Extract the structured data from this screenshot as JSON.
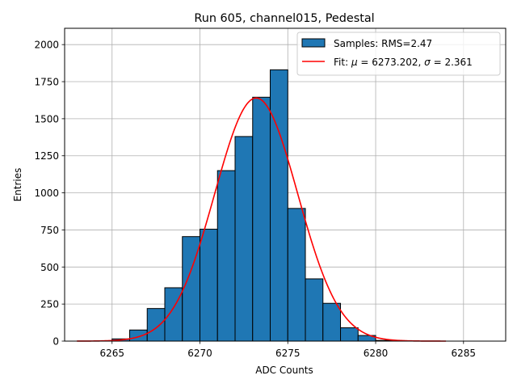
{
  "chart_data": {
    "type": "bar",
    "title": "Run 605, channel015, Pedestal",
    "xlabel": "ADC Counts",
    "ylabel": "Entries",
    "xlim": [
      6262.3,
      6287.4
    ],
    "ylim": [
      0,
      2110
    ],
    "xticks": [
      6265,
      6270,
      6275,
      6280,
      6285
    ],
    "yticks": [
      0,
      250,
      500,
      750,
      1000,
      1250,
      1500,
      1750,
      2000
    ],
    "grid": true,
    "bar_color": "#1f77b4",
    "fit_color": "#ff0000",
    "histogram": {
      "name": "Samples: RMS=2.47",
      "bins": [
        {
          "left": 6265,
          "right": 6266,
          "value": 15
        },
        {
          "left": 6266,
          "right": 6267,
          "value": 75
        },
        {
          "left": 6267,
          "right": 6268,
          "value": 220
        },
        {
          "left": 6268,
          "right": 6269,
          "value": 360
        },
        {
          "left": 6269,
          "right": 6270,
          "value": 705
        },
        {
          "left": 6270,
          "right": 6271,
          "value": 755
        },
        {
          "left": 6271,
          "right": 6272,
          "value": 1150
        },
        {
          "left": 6272,
          "right": 6273,
          "value": 1380
        },
        {
          "left": 6273,
          "right": 6274,
          "value": 1645
        },
        {
          "left": 6274,
          "right": 6275,
          "value": 1830
        },
        {
          "left": 6275,
          "right": 6276,
          "value": 895
        },
        {
          "left": 6276,
          "right": 6277,
          "value": 420
        },
        {
          "left": 6277,
          "right": 6278,
          "value": 255
        },
        {
          "left": 6278,
          "right": 6279,
          "value": 90
        },
        {
          "left": 6279,
          "right": 6280,
          "value": 38
        },
        {
          "left": 6280,
          "right": 6281,
          "value": 5
        }
      ]
    },
    "fit": {
      "name_prefix": "Fit: ",
      "mu_symbol": "μ",
      "mu_text": " = 6273.202, ",
      "sigma_symbol": "σ",
      "sigma_text": " = 2.361",
      "mu": 6273.202,
      "sigma": 2.361,
      "peak": 1640,
      "x_range": [
        6263,
        6284
      ]
    },
    "legend_position": "top-right"
  }
}
